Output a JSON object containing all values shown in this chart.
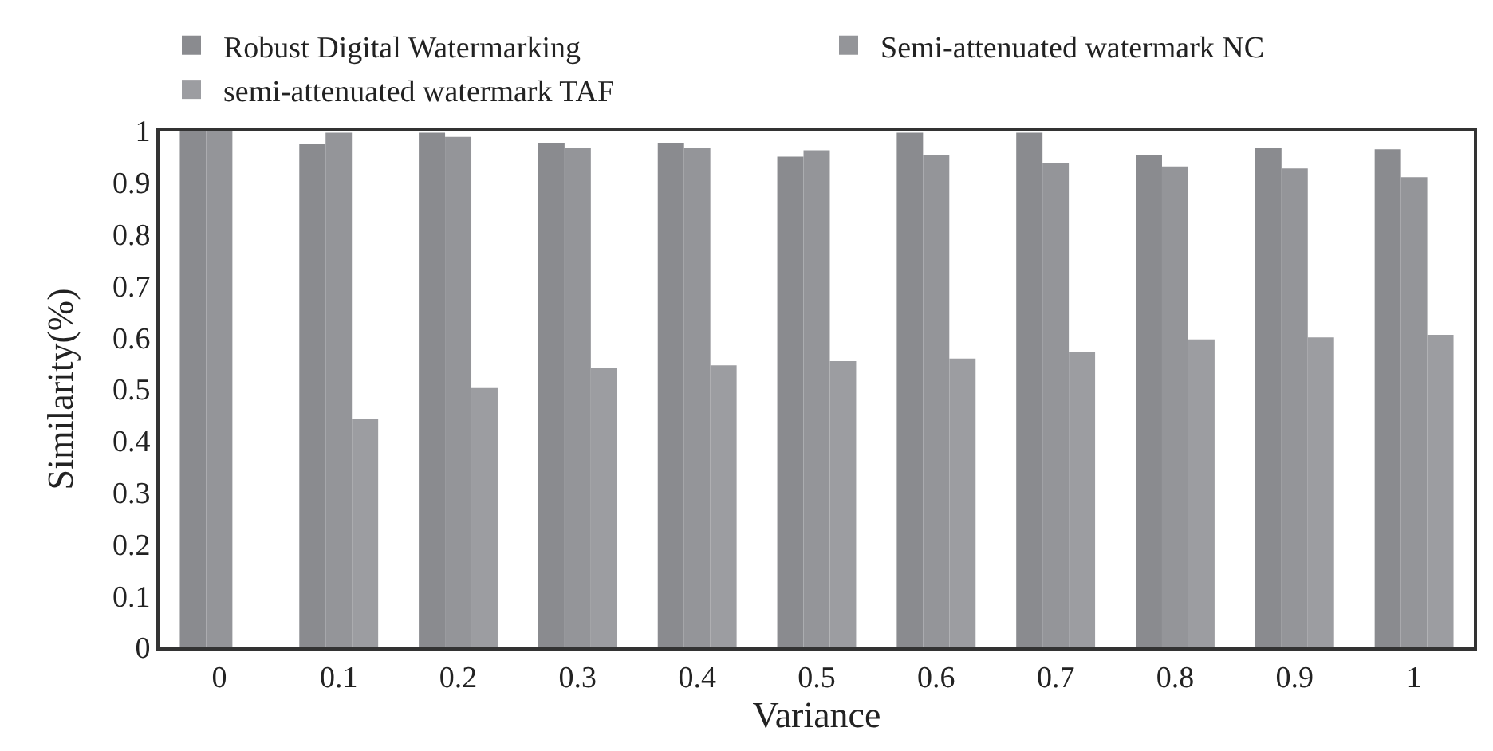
{
  "chart_data": {
    "type": "bar",
    "xlabel": "Variance",
    "ylabel": "Similarity(%)",
    "categories": [
      "0",
      "0.1",
      "0.2",
      "0.3",
      "0.4",
      "0.5",
      "0.6",
      "0.7",
      "0.8",
      "0.9",
      "1"
    ],
    "series": [
      {
        "name": "Robust Digital Watermarking",
        "color": "#8a8b8f",
        "values": [
          1,
          0.975,
          0.996,
          0.977,
          0.977,
          0.95,
          0.996,
          0.996,
          0.953,
          0.966,
          0.964
        ]
      },
      {
        "name": "Semi-attenuated watermark NC",
        "color": "#949599",
        "values": [
          1,
          0.996,
          0.988,
          0.966,
          0.966,
          0.962,
          0.953,
          0.937,
          0.931,
          0.927,
          0.91
        ]
      },
      {
        "name": "semi-attenuated watermark TAF",
        "color": "#9c9da1",
        "values": [
          0,
          0.443,
          0.502,
          0.541,
          0.546,
          0.554,
          0.559,
          0.571,
          0.596,
          0.6,
          0.605
        ]
      }
    ],
    "ylim": [
      0,
      1
    ],
    "yticks": [
      0,
      0.1,
      0.2,
      0.3,
      0.4,
      0.5,
      0.6,
      0.7,
      0.8,
      0.9,
      1
    ],
    "legend": "top"
  }
}
